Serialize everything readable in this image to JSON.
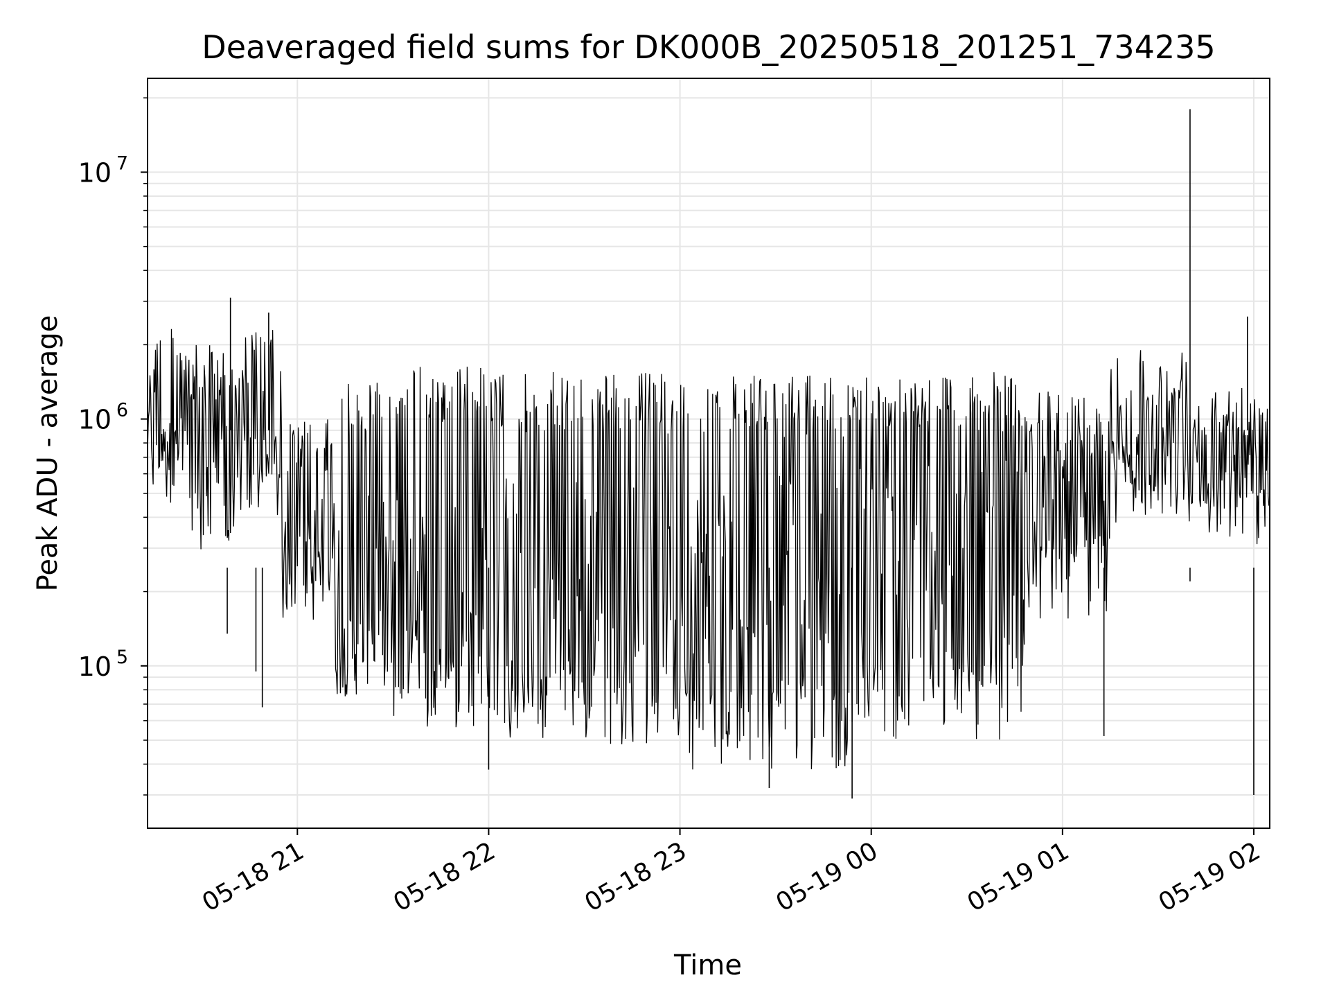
{
  "chart_data": {
    "type": "line",
    "title": "Deaveraged field sums for DK000B_20250518_201251_734235",
    "xlabel": "Time",
    "ylabel": "Peak ADU - average",
    "yscale": "log",
    "ylim": [
      22000,
      24000000
    ],
    "xlim": [
      "2025-05-18 20:13:00",
      "2025-05-19 02:05:00"
    ],
    "grid": true,
    "series_color": "#000000",
    "grid_color": "#e6e6e6",
    "x_ticks": [
      {
        "value": "2025-05-18 21:00",
        "label": "05-18 21"
      },
      {
        "value": "2025-05-18 22:00",
        "label": "05-18 22"
      },
      {
        "value": "2025-05-18 23:00",
        "label": "05-18 23"
      },
      {
        "value": "2025-05-19 00:00",
        "label": "05-19 00"
      },
      {
        "value": "2025-05-19 01:00",
        "label": "05-19 01"
      },
      {
        "value": "2025-05-19 02:00",
        "label": "05-19 02"
      }
    ],
    "y_ticks": [
      {
        "value": 100000,
        "base": "10",
        "exp": "5"
      },
      {
        "value": 1000000,
        "base": "10",
        "exp": "6"
      },
      {
        "value": 10000000,
        "base": "10",
        "exp": "7"
      }
    ],
    "envelope_segments": [
      {
        "start": "2025-05-18 20:13",
        "end": "2025-05-18 20:26",
        "high": 2500000,
        "low": 450000,
        "mid": 900000
      },
      {
        "start": "2025-05-18 20:26",
        "end": "2025-05-18 20:40",
        "high": 2000000,
        "low": 250000,
        "mid": 800000
      },
      {
        "start": "2025-05-18 20:40",
        "end": "2025-05-18 20:55",
        "high": 2300000,
        "low": 400000,
        "mid": 600000
      },
      {
        "start": "2025-05-18 20:55",
        "end": "2025-05-18 21:12",
        "high": 1000000,
        "low": 150000,
        "mid": 280000
      },
      {
        "start": "2025-05-18 21:12",
        "end": "2025-05-18 21:30",
        "high": 1500000,
        "low": 75000,
        "mid": 200000
      },
      {
        "start": "2025-05-18 21:30",
        "end": "2025-05-18 22:00",
        "high": 1650000,
        "low": 55000,
        "mid": 200000
      },
      {
        "start": "2025-05-18 22:00",
        "end": "2025-05-18 23:00",
        "high": 1550000,
        "low": 48000,
        "mid": 220000
      },
      {
        "start": "2025-05-18 23:00",
        "end": "2025-05-18 23:55",
        "high": 1500000,
        "low": 38000,
        "mid": 200000
      },
      {
        "start": "2025-05-18 23:55",
        "end": "2025-05-19 00:50",
        "high": 1550000,
        "low": 50000,
        "mid": 250000
      },
      {
        "start": "2025-05-19 00:50",
        "end": "2025-05-19 01:15",
        "high": 1300000,
        "low": 150000,
        "mid": 500000
      },
      {
        "start": "2025-05-19 01:15",
        "end": "2025-05-19 01:40",
        "high": 2000000,
        "low": 380000,
        "mid": 800000
      },
      {
        "start": "2025-05-19 01:40",
        "end": "2025-05-19 02:05",
        "high": 1500000,
        "low": 300000,
        "mid": 700000
      }
    ],
    "spikes": [
      {
        "x": "2025-05-18 20:39",
        "y": 3100000
      },
      {
        "x": "2025-05-18 20:38",
        "y": 135000
      },
      {
        "x": "2025-05-18 20:47",
        "y": 95000
      },
      {
        "x": "2025-05-18 20:49",
        "y": 68000
      },
      {
        "x": "2025-05-18 20:51",
        "y": 2700000
      },
      {
        "x": "2025-05-18 22:00",
        "y": 38000
      },
      {
        "x": "2025-05-18 23:28",
        "y": 32000
      },
      {
        "x": "2025-05-18 23:54",
        "y": 29000
      },
      {
        "x": "2025-05-19 01:13",
        "y": 52000
      },
      {
        "x": "2025-05-19 01:40",
        "y": 18000000
      },
      {
        "x": "2025-05-19 01:40",
        "y": 220000
      },
      {
        "x": "2025-05-19 02:00",
        "y": 30000
      },
      {
        "x": "2025-05-19 01:58",
        "y": 2600000
      }
    ]
  }
}
